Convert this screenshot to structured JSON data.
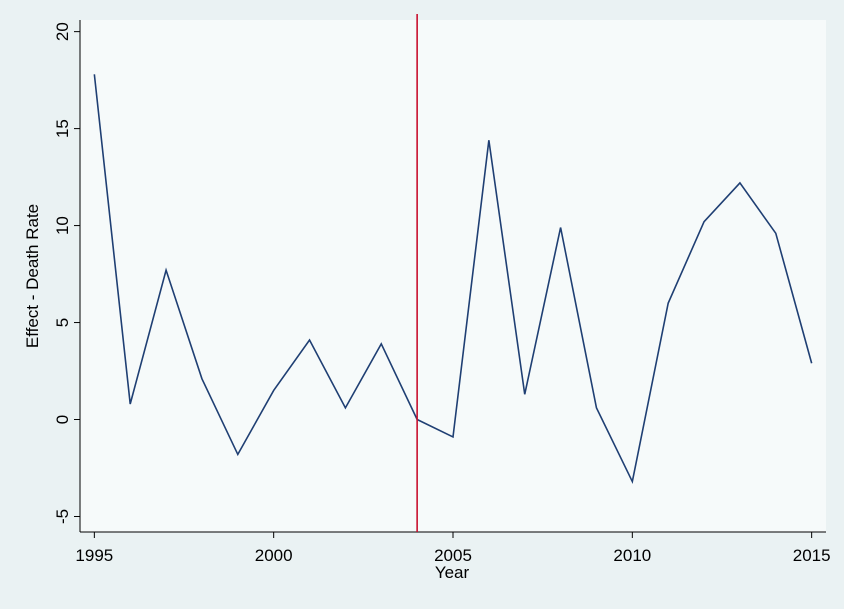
{
  "chart_data": {
    "type": "line",
    "x_label": "Year",
    "y_label": "Effect - Death Rate",
    "x": [
      1995,
      1996,
      1997,
      1998,
      1999,
      2000,
      2001,
      2002,
      2003,
      2004,
      2005,
      2006,
      2007,
      2008,
      2009,
      2010,
      2011,
      2012,
      2013,
      2014,
      2015
    ],
    "values": [
      17.8,
      0.8,
      7.7,
      2.1,
      -1.8,
      1.5,
      4.1,
      0.6,
      3.9,
      0,
      -0.9,
      14.4,
      1.3,
      9.9,
      0.6,
      -3.2,
      6.0,
      10.2,
      12.2,
      9.6,
      2.9
    ],
    "color": "#1f3f73",
    "xlim": [
      1994.6,
      2015.4
    ],
    "xticks": [
      1995,
      2000,
      2005,
      2010,
      2015
    ],
    "ylim": [
      -5.8,
      20.6
    ],
    "yticks": [
      -5,
      0,
      5,
      10,
      15,
      20
    ],
    "reference_line": {
      "x": 2004,
      "color": "#c8102e"
    }
  }
}
